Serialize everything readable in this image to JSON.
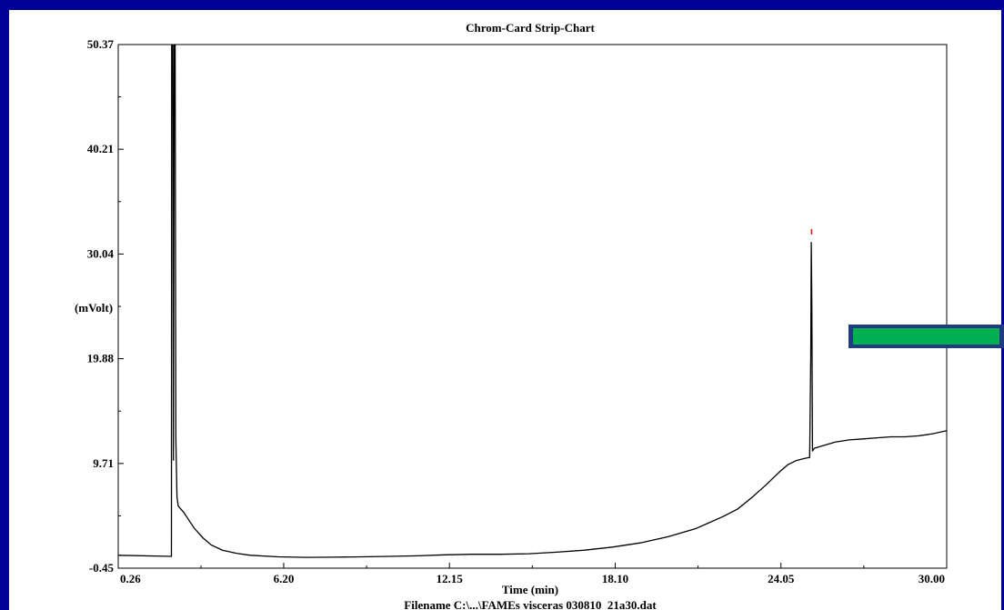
{
  "chart_data": {
    "type": "line",
    "title": "Chrom-Card Strip-Chart",
    "xlabel": "Time (min)",
    "ylabel": "(mVolt)",
    "footer": "Filename C:\\...\\FAMEs visceras 030810_21a30.dat",
    "xlim": [
      0.26,
      30.0
    ],
    "ylim": [
      -0.45,
      50.37
    ],
    "x_ticks": [
      "0.26",
      "6.20",
      "12.15",
      "18.10",
      "24.05",
      "30.00"
    ],
    "y_ticks": [
      "-0.45",
      "9.71",
      "19.88",
      "30.04",
      "40.21",
      "50.37"
    ],
    "grid": false,
    "series": [
      {
        "x": [
          0.26,
          2.17,
          2.18,
          2.22,
          2.24,
          2.27,
          2.3,
          2.33,
          2.37,
          2.41,
          2.47,
          2.6,
          2.8,
          3.0,
          3.3,
          3.6,
          4.0,
          4.5,
          5.0,
          6.0,
          7.0,
          8.0,
          9.0,
          10.0,
          11.0,
          12.0,
          13.0,
          14.0,
          15.0,
          16.0,
          17.0,
          18.0,
          19.0,
          20.0,
          21.0,
          22.0,
          22.5,
          23.0,
          23.5,
          24.0,
          24.3,
          24.6,
          24.9,
          25.08,
          25.12,
          25.14,
          25.16,
          25.18,
          25.2,
          25.22,
          25.26,
          25.5,
          26.0,
          26.5,
          27.0,
          27.5,
          28.0,
          28.5,
          29.0,
          29.5,
          30.0
        ],
        "y": [
          0.8,
          0.7,
          53.0,
          53.0,
          10.0,
          53.0,
          53.0,
          12.0,
          6.5,
          5.6,
          5.4,
          5.0,
          4.2,
          3.4,
          2.5,
          1.8,
          1.3,
          1.0,
          0.8,
          0.65,
          0.6,
          0.62,
          0.65,
          0.7,
          0.75,
          0.85,
          0.9,
          0.9,
          0.95,
          1.1,
          1.3,
          1.6,
          2.0,
          2.6,
          3.4,
          4.6,
          5.3,
          6.4,
          7.6,
          8.9,
          9.6,
          10.0,
          10.2,
          10.3,
          20.0,
          31.2,
          25.0,
          10.9,
          11.0,
          11.1,
          11.2,
          11.4,
          11.8,
          12.0,
          12.1,
          12.2,
          12.3,
          12.3,
          12.4,
          12.6,
          12.9
        ]
      }
    ],
    "annotations": [
      {
        "type": "peak-marker",
        "x": 25.15,
        "y": 32.2,
        "color": "#ff0000"
      }
    ]
  },
  "colors": {
    "background": "#000099",
    "plot": "#ffffff",
    "trace": "#000000",
    "marker": "#ff0000",
    "callout_fill": "#00b050",
    "callout_border": "#1f3b82"
  },
  "callout": {
    "icon": "green-bar-callout"
  }
}
